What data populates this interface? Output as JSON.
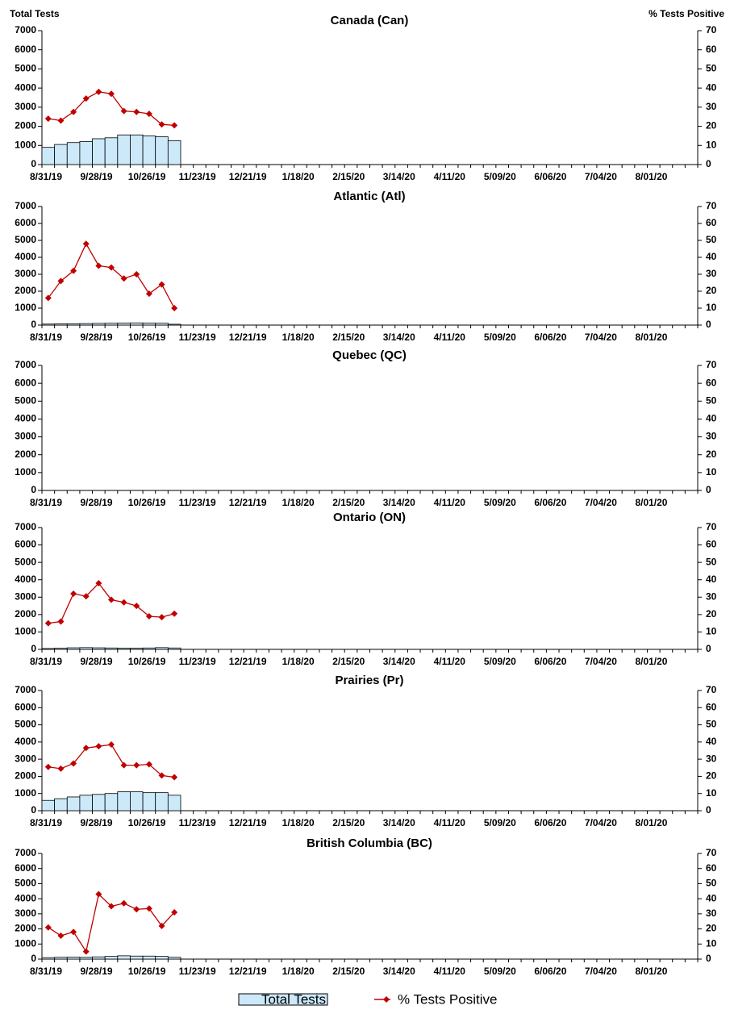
{
  "chart_data": [
    {
      "type": "combo",
      "title": "Canada (Can)",
      "ylabel": "Total Tests",
      "y2label": "% Tests Positive",
      "categories": [
        "8/31/19",
        null,
        null,
        null,
        "9/28/19",
        null,
        null,
        null,
        "10/26/19",
        null,
        null,
        null,
        "11/23/19",
        null,
        null,
        null,
        "12/21/19",
        null,
        null,
        null,
        "1/18/20",
        null,
        null,
        null,
        "2/15/20",
        null,
        null,
        null,
        "3/14/20",
        null,
        null,
        null,
        "4/11/20",
        null,
        null,
        null,
        "5/09/20",
        null,
        null,
        null,
        "6/06/20",
        null,
        null,
        null,
        "7/04/20",
        null,
        null,
        null,
        "8/01/20",
        null,
        null,
        null
      ],
      "ylim": [
        0,
        7000
      ],
      "yticks": [
        0,
        1000,
        2000,
        3000,
        4000,
        5000,
        6000,
        7000
      ],
      "y2lim": [
        0,
        70
      ],
      "y2ticks": [
        0,
        10,
        20,
        30,
        40,
        50,
        60,
        70
      ],
      "series": [
        {
          "name": "Total Tests",
          "type": "bar",
          "color": "#cce9fa",
          "values": [
            900,
            1050,
            1150,
            1200,
            1350,
            1400,
            1550,
            1550,
            1500,
            1450,
            1250,
            null,
            null,
            null,
            null,
            null,
            null,
            null,
            null,
            null,
            null,
            null,
            null,
            null,
            null,
            null,
            null,
            null,
            null,
            null,
            null,
            null,
            null,
            null,
            null,
            null,
            null,
            null,
            null,
            null,
            null,
            null,
            null,
            null,
            null,
            null,
            null,
            null,
            null,
            null,
            null,
            null
          ]
        },
        {
          "name": "% Tests Positive",
          "type": "line",
          "axis": "y2",
          "color": "#c00000",
          "values": [
            24,
            23,
            27.5,
            34.5,
            38,
            37,
            28,
            27.5,
            26.5,
            21,
            20.5,
            null,
            null,
            null,
            null,
            null,
            null,
            null,
            null,
            null,
            null,
            null,
            null,
            null,
            null,
            null,
            null,
            null,
            null,
            null,
            null,
            null,
            null,
            null,
            null,
            null,
            null,
            null,
            null,
            null,
            null,
            null,
            null,
            null,
            null,
            null,
            null,
            null,
            null,
            null,
            null,
            null
          ]
        }
      ]
    },
    {
      "type": "combo",
      "title": "Atlantic (Atl)",
      "categories": [
        "8/31/19",
        null,
        null,
        null,
        "9/28/19",
        null,
        null,
        null,
        "10/26/19",
        null,
        null,
        null,
        "11/23/19",
        null,
        null,
        null,
        "12/21/19",
        null,
        null,
        null,
        "1/18/20",
        null,
        null,
        null,
        "2/15/20",
        null,
        null,
        null,
        "3/14/20",
        null,
        null,
        null,
        "4/11/20",
        null,
        null,
        null,
        "5/09/20",
        null,
        null,
        null,
        "6/06/20",
        null,
        null,
        null,
        "7/04/20",
        null,
        null,
        null,
        "8/01/20",
        null,
        null,
        null
      ],
      "ylim": [
        0,
        7000
      ],
      "yticks": [
        0,
        1000,
        2000,
        3000,
        4000,
        5000,
        6000,
        7000
      ],
      "y2lim": [
        0,
        70
      ],
      "y2ticks": [
        0,
        10,
        20,
        30,
        40,
        50,
        60,
        70
      ],
      "series": [
        {
          "name": "Total Tests",
          "type": "bar",
          "color": "#cce9fa",
          "values": [
            60,
            70,
            80,
            90,
            100,
            110,
            120,
            130,
            120,
            110,
            50,
            null,
            null,
            null,
            null,
            null,
            null,
            null,
            null,
            null,
            null,
            null,
            null,
            null,
            null,
            null,
            null,
            null,
            null,
            null,
            null,
            null,
            null,
            null,
            null,
            null,
            null,
            null,
            null,
            null,
            null,
            null,
            null,
            null,
            null,
            null,
            null,
            null,
            null,
            null,
            null,
            null
          ]
        },
        {
          "name": "% Tests Positive",
          "type": "line",
          "axis": "y2",
          "color": "#c00000",
          "values": [
            16,
            26,
            32,
            48,
            35,
            34,
            27.5,
            30,
            18.5,
            24,
            10,
            null,
            null,
            null,
            null,
            null,
            null,
            null,
            null,
            null,
            null,
            null,
            null,
            null,
            null,
            null,
            null,
            null,
            null,
            null,
            null,
            null,
            null,
            null,
            null,
            null,
            null,
            null,
            null,
            null,
            null,
            null,
            null,
            null,
            null,
            null,
            null,
            null,
            null,
            null,
            null,
            null
          ]
        }
      ]
    },
    {
      "type": "combo",
      "title": "Quebec (QC)",
      "categories": [
        "8/31/19",
        null,
        null,
        null,
        "9/28/19",
        null,
        null,
        null,
        "10/26/19",
        null,
        null,
        null,
        "11/23/19",
        null,
        null,
        null,
        "12/21/19",
        null,
        null,
        null,
        "1/18/20",
        null,
        null,
        null,
        "2/15/20",
        null,
        null,
        null,
        "3/14/20",
        null,
        null,
        null,
        "4/11/20",
        null,
        null,
        null,
        "5/09/20",
        null,
        null,
        null,
        "6/06/20",
        null,
        null,
        null,
        "7/04/20",
        null,
        null,
        null,
        "8/01/20",
        null,
        null,
        null
      ],
      "ylim": [
        0,
        7000
      ],
      "yticks": [
        0,
        1000,
        2000,
        3000,
        4000,
        5000,
        6000,
        7000
      ],
      "y2lim": [
        0,
        70
      ],
      "y2ticks": [
        0,
        10,
        20,
        30,
        40,
        50,
        60,
        70
      ],
      "series": []
    },
    {
      "type": "combo",
      "title": "Ontario (ON)",
      "categories": [
        "8/31/19",
        null,
        null,
        null,
        "9/28/19",
        null,
        null,
        null,
        "10/26/19",
        null,
        null,
        null,
        "11/23/19",
        null,
        null,
        null,
        "12/21/19",
        null,
        null,
        null,
        "1/18/20",
        null,
        null,
        null,
        "2/15/20",
        null,
        null,
        null,
        "3/14/20",
        null,
        null,
        null,
        "4/11/20",
        null,
        null,
        null,
        "5/09/20",
        null,
        null,
        null,
        "6/06/20",
        null,
        null,
        null,
        "7/04/20",
        null,
        null,
        null,
        "8/01/20",
        null,
        null,
        null
      ],
      "ylim": [
        0,
        7000
      ],
      "yticks": [
        0,
        1000,
        2000,
        3000,
        4000,
        5000,
        6000,
        7000
      ],
      "y2lim": [
        0,
        70
      ],
      "y2ticks": [
        0,
        10,
        20,
        30,
        40,
        50,
        60,
        70
      ],
      "series": [
        {
          "name": "Total Tests",
          "type": "bar",
          "color": "#cce9fa",
          "values": [
            50,
            70,
            90,
            100,
            90,
            80,
            70,
            70,
            80,
            100,
            80,
            null,
            null,
            null,
            null,
            null,
            null,
            null,
            null,
            null,
            null,
            null,
            null,
            null,
            null,
            null,
            null,
            null,
            null,
            null,
            null,
            null,
            null,
            null,
            null,
            null,
            null,
            null,
            null,
            null,
            null,
            null,
            null,
            null,
            null,
            null,
            null,
            null,
            null,
            null,
            null,
            null
          ]
        },
        {
          "name": "% Tests Positive",
          "type": "line",
          "axis": "y2",
          "color": "#c00000",
          "values": [
            15,
            16,
            32,
            30.5,
            38,
            28.5,
            27,
            25,
            19,
            18.5,
            20.5,
            null,
            null,
            null,
            null,
            null,
            null,
            null,
            null,
            null,
            null,
            null,
            null,
            null,
            null,
            null,
            null,
            null,
            null,
            null,
            null,
            null,
            null,
            null,
            null,
            null,
            null,
            null,
            null,
            null,
            null,
            null,
            null,
            null,
            null,
            null,
            null,
            null,
            null,
            null,
            null,
            null
          ]
        }
      ]
    },
    {
      "type": "combo",
      "title": "Prairies (Pr)",
      "categories": [
        "8/31/19",
        null,
        null,
        null,
        "9/28/19",
        null,
        null,
        null,
        "10/26/19",
        null,
        null,
        null,
        "11/23/19",
        null,
        null,
        null,
        "12/21/19",
        null,
        null,
        null,
        "1/18/20",
        null,
        null,
        null,
        "2/15/20",
        null,
        null,
        null,
        "3/14/20",
        null,
        null,
        null,
        "4/11/20",
        null,
        null,
        null,
        "5/09/20",
        null,
        null,
        null,
        "6/06/20",
        null,
        null,
        null,
        "7/04/20",
        null,
        null,
        null,
        "8/01/20",
        null,
        null,
        null
      ],
      "ylim": [
        0,
        7000
      ],
      "yticks": [
        0,
        1000,
        2000,
        3000,
        4000,
        5000,
        6000,
        7000
      ],
      "y2lim": [
        0,
        70
      ],
      "y2ticks": [
        0,
        10,
        20,
        30,
        40,
        50,
        60,
        70
      ],
      "series": [
        {
          "name": "Total Tests",
          "type": "bar",
          "color": "#cce9fa",
          "values": [
            600,
            700,
            800,
            900,
            950,
            1000,
            1100,
            1100,
            1050,
            1050,
            900,
            null,
            null,
            null,
            null,
            null,
            null,
            null,
            null,
            null,
            null,
            null,
            null,
            null,
            null,
            null,
            null,
            null,
            null,
            null,
            null,
            null,
            null,
            null,
            null,
            null,
            null,
            null,
            null,
            null,
            null,
            null,
            null,
            null,
            null,
            null,
            null,
            null,
            null,
            null,
            null,
            null
          ]
        },
        {
          "name": "% Tests Positive",
          "type": "line",
          "axis": "y2",
          "color": "#c00000",
          "values": [
            25.5,
            24.5,
            27.5,
            36.5,
            37.5,
            38.5,
            26.5,
            26.5,
            27,
            20.5,
            19.5,
            null,
            null,
            null,
            null,
            null,
            null,
            null,
            null,
            null,
            null,
            null,
            null,
            null,
            null,
            null,
            null,
            null,
            null,
            null,
            null,
            null,
            null,
            null,
            null,
            null,
            null,
            null,
            null,
            null,
            null,
            null,
            null,
            null,
            null,
            null,
            null,
            null,
            null,
            null,
            null,
            null
          ]
        }
      ]
    },
    {
      "type": "combo",
      "title": "British Columbia (BC)",
      "categories": [
        "8/31/19",
        null,
        null,
        null,
        "9/28/19",
        null,
        null,
        null,
        "10/26/19",
        null,
        null,
        null,
        "11/23/19",
        null,
        null,
        null,
        "12/21/19",
        null,
        null,
        null,
        "1/18/20",
        null,
        null,
        null,
        "2/15/20",
        null,
        null,
        null,
        "3/14/20",
        null,
        null,
        null,
        "4/11/20",
        null,
        null,
        null,
        "5/09/20",
        null,
        null,
        null,
        "6/06/20",
        null,
        null,
        null,
        "7/04/20",
        null,
        null,
        null,
        "8/01/20",
        null,
        null,
        null
      ],
      "ylim": [
        0,
        7000
      ],
      "yticks": [
        0,
        1000,
        2000,
        3000,
        4000,
        5000,
        6000,
        7000
      ],
      "y2lim": [
        0,
        70
      ],
      "y2ticks": [
        0,
        10,
        20,
        30,
        40,
        50,
        60,
        70
      ],
      "series": [
        {
          "name": "Total Tests",
          "type": "bar",
          "color": "#cce9fa",
          "values": [
            100,
            120,
            130,
            120,
            150,
            180,
            220,
            200,
            200,
            180,
            120,
            null,
            null,
            null,
            null,
            null,
            null,
            null,
            null,
            null,
            null,
            null,
            null,
            null,
            null,
            null,
            null,
            null,
            null,
            null,
            null,
            null,
            null,
            null,
            null,
            null,
            null,
            null,
            null,
            null,
            null,
            null,
            null,
            null,
            null,
            null,
            null,
            null,
            null,
            null,
            null,
            null
          ]
        },
        {
          "name": "% Tests Positive",
          "type": "line",
          "axis": "y2",
          "color": "#c00000",
          "values": [
            21,
            15.5,
            18,
            5,
            43,
            35,
            37,
            33,
            33.5,
            22,
            31,
            null,
            null,
            null,
            null,
            null,
            null,
            null,
            null,
            null,
            null,
            null,
            null,
            null,
            null,
            null,
            null,
            null,
            null,
            null,
            null,
            null,
            null,
            null,
            null,
            null,
            null,
            null,
            null,
            null,
            null,
            null,
            null,
            null,
            null,
            null,
            null,
            null,
            null,
            null,
            null,
            null
          ]
        }
      ]
    }
  ]
}
